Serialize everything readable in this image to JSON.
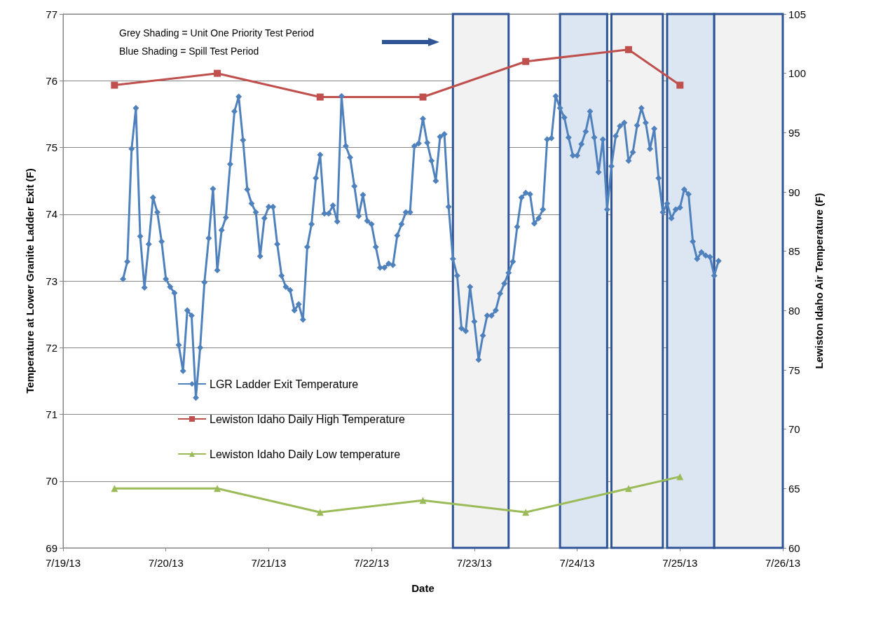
{
  "chart_data": {
    "type": "line",
    "xlabel": "Date",
    "ylabel": "Temperature at Lower Granite Ladder Exit (F)",
    "y2label": "Lewiston Idaho Air Temperature (F)",
    "annotations": [
      "Grey Shading = Unit One Priority Test Period",
      "Blue Shading = Spill Test Period"
    ],
    "xlim": [
      "--07-19",
      "--07-26"
    ],
    "xticks": [
      {
        "value": "--07-19",
        "label": "7/19/13"
      },
      {
        "value": "--07-20",
        "label": "7/20/13"
      },
      {
        "value": "--07-21",
        "label": "7/21/13"
      },
      {
        "value": "--07-22",
        "label": "7/22/13"
      },
      {
        "value": "--07-23",
        "label": "7/23/13"
      },
      {
        "value": "--07-24",
        "label": "7/24/13"
      },
      {
        "value": "--07-25",
        "label": "7/25/13"
      },
      {
        "value": "--07-26",
        "label": "7/26/13"
      }
    ],
    "ylim": [
      69,
      77
    ],
    "yticks": [
      69,
      70,
      71,
      72,
      73,
      74,
      75,
      76,
      77
    ],
    "y2lim": [
      60,
      105
    ],
    "y2ticks": [
      60,
      65,
      70,
      75,
      80,
      85,
      90,
      95,
      100,
      105
    ],
    "grid": "y",
    "legend": "bottom",
    "bands": [
      {
        "axis": "x",
        "from": "--07-22T19:00",
        "to": "--07-23T08:00",
        "color": "#f2f2f2"
      },
      {
        "axis": "x",
        "from": "--07-23T20:00",
        "to": "--07-24T07:00",
        "color": "#dce6f2"
      },
      {
        "axis": "x",
        "from": "--07-24T08:00",
        "to": "--07-24T20:00",
        "color": "#f2f2f2"
      },
      {
        "axis": "x",
        "from": "--07-24T21:00",
        "to": "--07-25T08:00",
        "color": "#dce6f2"
      },
      {
        "axis": "x",
        "from": "--07-25T08:00",
        "to": "--07-26",
        "color": "#f2f2f2"
      }
    ],
    "series": [
      {
        "name": "LGR Ladder Exit Temperature",
        "color": "#4f81bd",
        "marker": "diamond",
        "x": [
          "--07-19T14:00",
          "--07-19T15:00",
          "--07-19T16:00",
          "--07-19T17:00",
          "--07-19T18:00",
          "--07-19T19:00",
          "--07-19T20:00",
          "--07-19T21:00",
          "--07-19T22:00",
          "--07-19T23:00",
          "--07-20T00:00",
          "--07-20T01:00",
          "--07-20T02:00",
          "--07-20T03:00",
          "--07-20T04:00",
          "--07-20T05:00",
          "--07-20T06:00",
          "--07-20T07:00",
          "--07-20T08:00",
          "--07-20T09:00",
          "--07-20T10:00",
          "--07-20T11:00",
          "--07-20T12:00",
          "--07-20T13:00",
          "--07-20T14:00",
          "--07-20T15:00",
          "--07-20T16:00",
          "--07-20T17:00",
          "--07-20T18:00",
          "--07-20T19:00",
          "--07-20T20:00",
          "--07-20T21:00",
          "--07-20T22:00",
          "--07-20T23:00",
          "--07-21T00:00",
          "--07-21T01:00",
          "--07-21T02:00",
          "--07-21T03:00",
          "--07-21T04:00",
          "--07-21T05:00",
          "--07-21T06:00",
          "--07-21T07:00",
          "--07-21T08:00",
          "--07-21T09:00",
          "--07-21T10:00",
          "--07-21T11:00",
          "--07-21T12:00",
          "--07-21T13:00",
          "--07-21T14:00",
          "--07-21T15:00",
          "--07-21T16:00",
          "--07-21T17:00",
          "--07-21T18:00",
          "--07-21T19:00",
          "--07-21T20:00",
          "--07-21T21:00",
          "--07-21T22:00",
          "--07-21T23:00",
          "--07-22T00:00",
          "--07-22T01:00",
          "--07-22T02:00",
          "--07-22T03:00",
          "--07-22T04:00",
          "--07-22T05:00",
          "--07-22T06:00",
          "--07-22T07:00",
          "--07-22T08:00",
          "--07-22T09:00",
          "--07-22T10:00",
          "--07-22T11:00",
          "--07-22T12:00",
          "--07-22T13:00",
          "--07-22T14:00",
          "--07-22T15:00",
          "--07-22T16:00",
          "--07-22T17:00",
          "--07-22T18:00",
          "--07-22T19:00",
          "--07-22T20:00",
          "--07-22T21:00",
          "--07-22T22:00",
          "--07-22T23:00",
          "--07-23T00:00",
          "--07-23T01:00",
          "--07-23T02:00",
          "--07-23T03:00",
          "--07-23T04:00",
          "--07-23T05:00",
          "--07-23T06:00",
          "--07-23T07:00",
          "--07-23T08:00",
          "--07-23T09:00",
          "--07-23T10:00",
          "--07-23T11:00",
          "--07-23T12:00",
          "--07-23T13:00",
          "--07-23T14:00",
          "--07-23T15:00",
          "--07-23T16:00",
          "--07-23T17:00",
          "--07-23T18:00",
          "--07-23T19:00",
          "--07-23T20:00",
          "--07-23T21:00",
          "--07-23T22:00",
          "--07-23T23:00",
          "--07-24T00:00",
          "--07-24T01:00",
          "--07-24T02:00",
          "--07-24T03:00",
          "--07-24T04:00",
          "--07-24T05:00",
          "--07-24T06:00",
          "--07-24T07:00",
          "--07-24T08:00",
          "--07-24T09:00",
          "--07-24T10:00",
          "--07-24T11:00",
          "--07-24T12:00",
          "--07-24T13:00",
          "--07-24T14:00",
          "--07-24T15:00",
          "--07-24T16:00",
          "--07-24T17:00",
          "--07-24T18:00",
          "--07-24T19:00",
          "--07-24T20:00",
          "--07-24T21:00",
          "--07-24T22:00",
          "--07-24T23:00",
          "--07-25T00:00",
          "--07-25T01:00",
          "--07-25T02:00",
          "--07-25T03:00",
          "--07-25T04:00",
          "--07-25T05:00",
          "--07-25T06:00",
          "--07-25T07:00",
          "--07-25T08:00",
          "--07-25T09:00"
        ],
        "values": [
          73.03,
          73.29,
          74.98,
          75.59,
          73.67,
          72.9,
          73.55,
          74.25,
          74.03,
          73.59,
          73.03,
          72.91,
          72.82,
          72.04,
          71.65,
          72.56,
          72.48,
          71.25,
          72.0,
          72.98,
          73.64,
          74.38,
          73.16,
          73.76,
          73.95,
          74.75,
          75.54,
          75.76,
          75.11,
          74.37,
          74.16,
          74.03,
          73.37,
          73.94,
          74.11,
          74.11,
          73.55,
          73.08,
          72.91,
          72.86,
          72.56,
          72.65,
          72.42,
          73.51,
          73.85,
          74.54,
          74.89,
          74.01,
          74.01,
          74.13,
          73.89,
          75.77,
          75.02,
          74.85,
          74.42,
          73.97,
          74.29,
          73.9,
          73.85,
          73.51,
          73.2,
          73.2,
          73.26,
          73.24,
          73.68,
          73.85,
          74.03,
          74.03,
          75.02,
          75.06,
          75.43,
          75.07,
          74.8,
          74.5,
          75.16,
          75.2,
          74.11,
          73.33,
          73.08,
          72.29,
          72.25,
          72.91,
          72.39,
          71.82,
          72.18,
          72.48,
          72.48,
          72.56,
          72.81,
          72.96,
          73.12,
          73.29,
          73.81,
          74.25,
          74.32,
          74.3,
          73.86,
          73.94,
          74.07,
          75.12,
          75.14,
          75.77,
          75.59,
          75.45,
          75.15,
          74.88,
          74.88,
          75.05,
          75.24,
          75.54,
          75.15,
          74.63,
          75.12,
          74.07,
          74.72,
          75.17,
          75.32,
          75.37,
          74.8,
          74.93,
          75.33,
          75.59,
          75.37,
          74.98,
          75.28,
          74.54,
          74.03,
          74.16,
          73.94,
          74.07,
          74.1,
          74.37,
          74.3,
          73.59,
          73.33,
          73.43,
          73.38,
          73.36,
          73.08,
          73.3
        ]
      },
      {
        "name": "Lewiston Idaho Daily High Temperature",
        "color": "#c0504d",
        "marker": "square",
        "axis": "y2",
        "x": [
          "--07-19T12:00",
          "--07-20T12:00",
          "--07-21T12:00",
          "--07-22T12:00",
          "--07-23T12:00",
          "--07-24T12:00",
          "--07-25T00:00"
        ],
        "values": [
          99,
          100,
          98,
          98,
          101,
          102,
          99
        ]
      },
      {
        "name": "Lewiston Idaho Daily Low temperature",
        "color": "#9bbb59",
        "marker": "triangle",
        "axis": "y2",
        "x": [
          "--07-19T12:00",
          "--07-20T12:00",
          "--07-21T12:00",
          "--07-22T12:00",
          "--07-23T12:00",
          "--07-24T12:00",
          "--07-25T00:00"
        ],
        "values": [
          65,
          65,
          63,
          64,
          63,
          65,
          66
        ]
      }
    ]
  }
}
